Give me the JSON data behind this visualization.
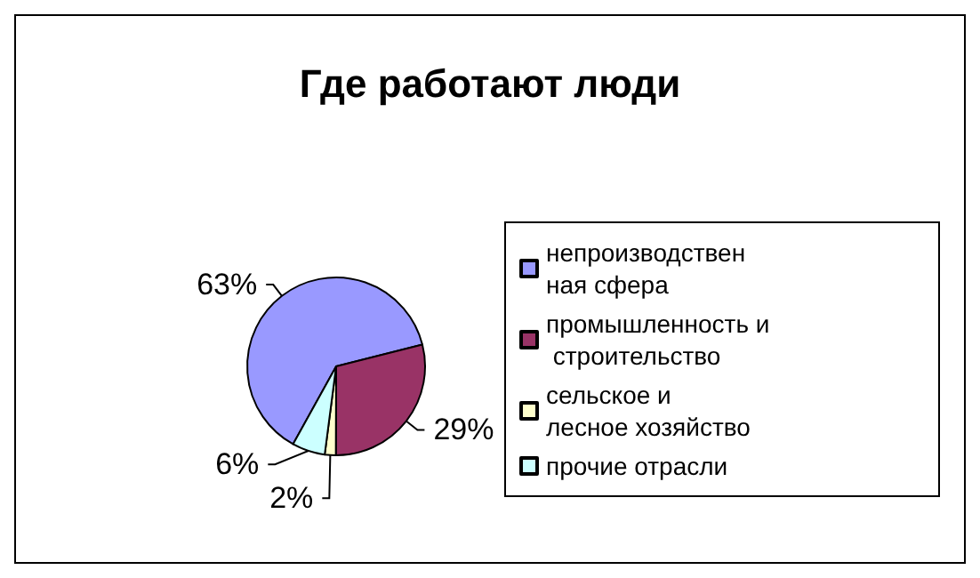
{
  "chart_data": {
    "type": "pie",
    "title": "Где работают люди",
    "categories": [
      "непроизводственная сфера",
      "промышленность и строительство",
      "сельское и лесное хозяйство",
      "прочие отрасли"
    ],
    "values": [
      63,
      29,
      2,
      6
    ],
    "colors": [
      "#9999ff",
      "#993366",
      "#ffffcc",
      "#ccffff"
    ],
    "value_labels": [
      "63%",
      "29%",
      "2%",
      "6%"
    ],
    "legend": "right"
  }
}
